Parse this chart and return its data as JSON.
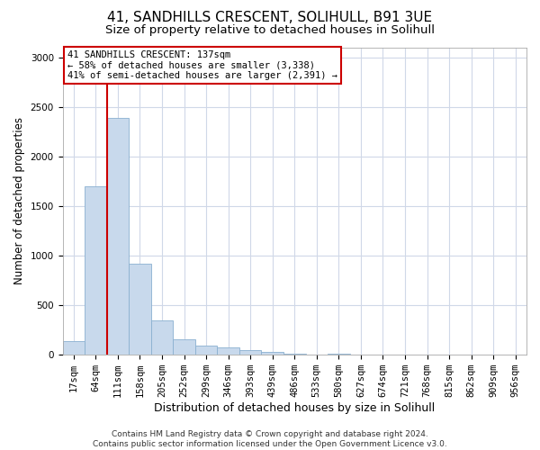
{
  "title1": "41, SANDHILLS CRESCENT, SOLIHULL, B91 3UE",
  "title2": "Size of property relative to detached houses in Solihull",
  "xlabel": "Distribution of detached houses by size in Solihull",
  "ylabel": "Number of detached properties",
  "categories": [
    "17sqm",
    "64sqm",
    "111sqm",
    "158sqm",
    "205sqm",
    "252sqm",
    "299sqm",
    "346sqm",
    "393sqm",
    "439sqm",
    "486sqm",
    "533sqm",
    "580sqm",
    "627sqm",
    "674sqm",
    "721sqm",
    "768sqm",
    "815sqm",
    "862sqm",
    "909sqm",
    "956sqm"
  ],
  "values": [
    140,
    1700,
    2390,
    920,
    350,
    160,
    90,
    75,
    45,
    25,
    15,
    5,
    10,
    0,
    0,
    0,
    0,
    0,
    0,
    0,
    0
  ],
  "bar_color": "#c8d9ec",
  "bar_edgecolor": "#8ab0d0",
  "vline_position": 2.0,
  "vline_color": "#cc0000",
  "annotation_text": "41 SANDHILLS CRESCENT: 137sqm\n← 58% of detached houses are smaller (3,338)\n41% of semi-detached houses are larger (2,391) →",
  "annotation_box_facecolor": "#ffffff",
  "annotation_box_edgecolor": "#cc0000",
  "ylim": [
    0,
    3100
  ],
  "yticks": [
    0,
    500,
    1000,
    1500,
    2000,
    2500,
    3000
  ],
  "footer": "Contains HM Land Registry data © Crown copyright and database right 2024.\nContains public sector information licensed under the Open Government Licence v3.0.",
  "bg_color": "#ffffff",
  "plot_bg_color": "#ffffff",
  "grid_color": "#d0d8e8",
  "title1_fontsize": 11,
  "title2_fontsize": 9.5,
  "xlabel_fontsize": 9,
  "ylabel_fontsize": 8.5,
  "tick_fontsize": 7.5,
  "footer_fontsize": 6.5
}
